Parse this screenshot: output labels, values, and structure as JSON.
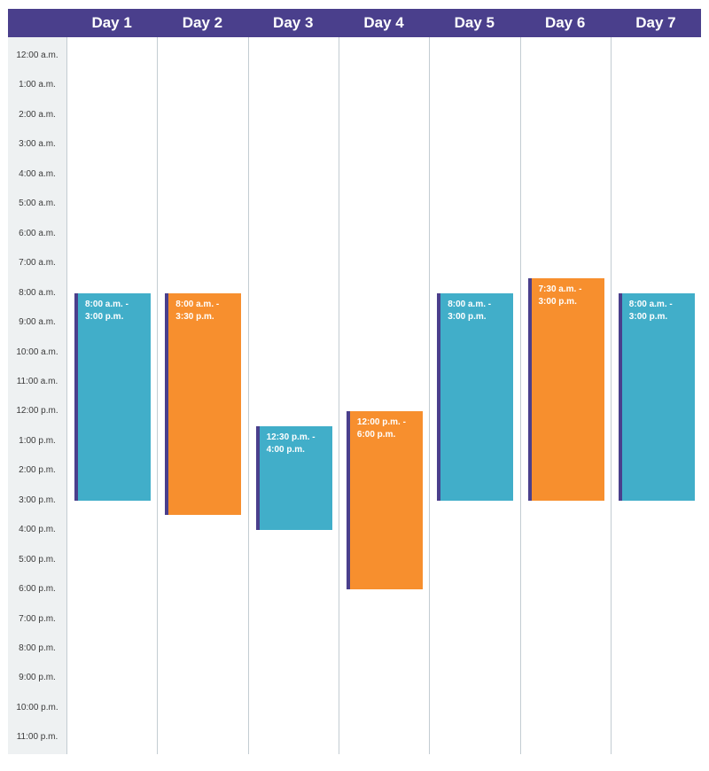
{
  "colors": {
    "header": "#4a3f8c",
    "accent_bar": "#4a3f8c",
    "teal": "#41aec9",
    "orange": "#f78f2e",
    "gutter": "#eef1f2",
    "grid_line": "#c3ccd2"
  },
  "days": [
    "Day 1",
    "Day 2",
    "Day 3",
    "Day 4",
    "Day 5",
    "Day 6",
    "Day 7"
  ],
  "time_labels": [
    "12:00 a.m.",
    "1:00 a.m.",
    "2:00 a.m.",
    "3:00 a.m.",
    "4:00 a.m.",
    "5:00 a.m.",
    "6:00 a.m.",
    "7:00 a.m.",
    "8:00 a.m.",
    "9:00 a.m.",
    "10:00 a.m.",
    "11:00 a.m.",
    "12:00 p.m.",
    "1:00 p.m.",
    "2:00 p.m.",
    "3:00 p.m.",
    "4:00 p.m.",
    "5:00 p.m.",
    "6:00 p.m.",
    "7:00 p.m.",
    "8:00 p.m.",
    "9:00 p.m.",
    "10:00 p.m.",
    "11:00 p.m."
  ],
  "shifts": [
    {
      "day": 1,
      "start": 8,
      "end": 15,
      "color": "teal",
      "line1": "8:00 a.m. -",
      "line2": "3:00 p.m."
    },
    {
      "day": 2,
      "start": 8,
      "end": 15.5,
      "color": "orange",
      "line1": "8:00 a.m. -",
      "line2": "3:30 p.m."
    },
    {
      "day": 3,
      "start": 12.5,
      "end": 16,
      "color": "teal",
      "line1": "12:30 p.m. -",
      "line2": "4:00 p.m."
    },
    {
      "day": 4,
      "start": 12,
      "end": 18,
      "color": "orange",
      "line1": "12:00 p.m. -",
      "line2": "6:00 p.m."
    },
    {
      "day": 5,
      "start": 8,
      "end": 15,
      "color": "teal",
      "line1": "8:00 a.m. -",
      "line2": "3:00 p.m."
    },
    {
      "day": 6,
      "start": 7.5,
      "end": 15,
      "color": "orange",
      "line1": "7:30 a.m. -",
      "line2": "3:00 p.m."
    },
    {
      "day": 7,
      "start": 8,
      "end": 15,
      "color": "teal",
      "line1": "8:00 a.m. -",
      "line2": "3:00 p.m."
    }
  ]
}
